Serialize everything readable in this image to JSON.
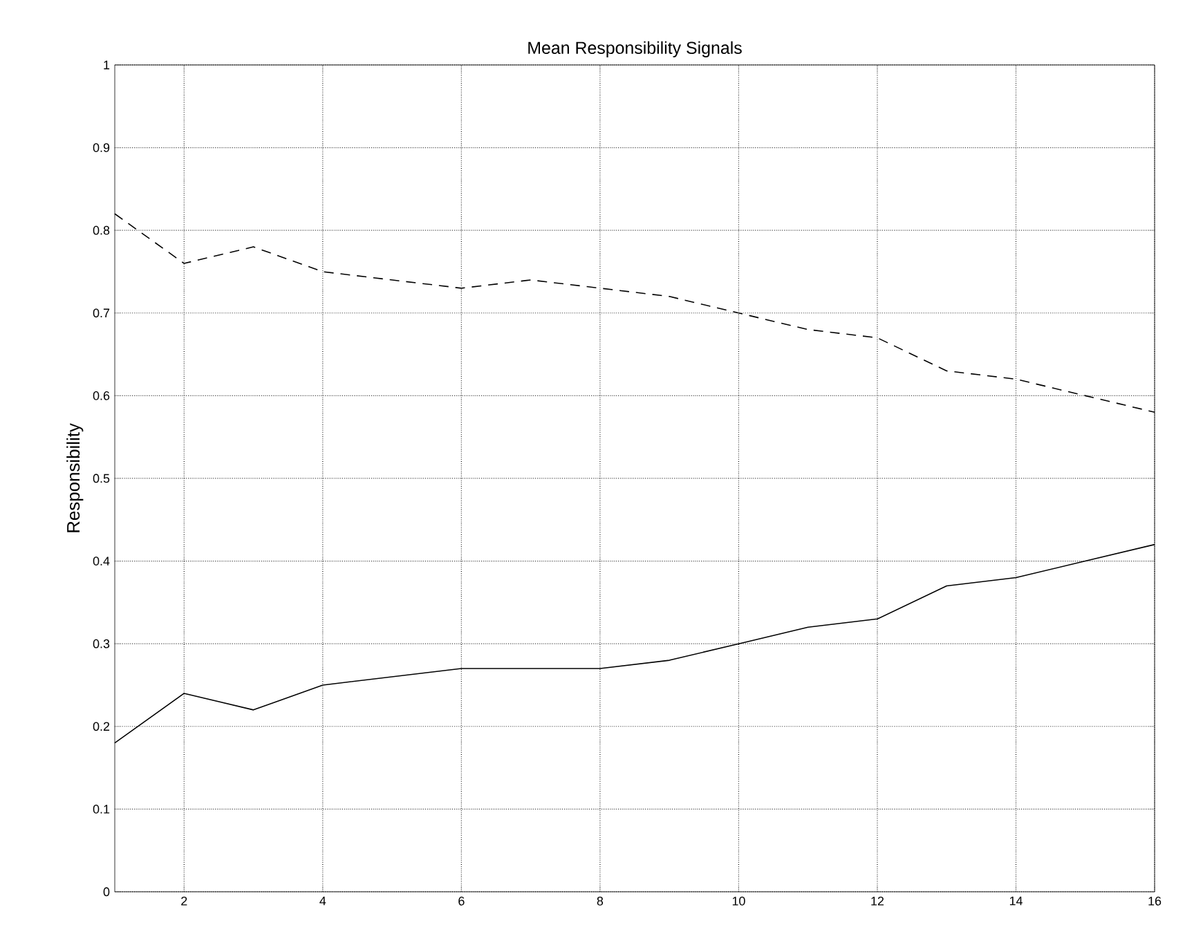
{
  "chart_data": {
    "type": "line",
    "title": "Mean Responsibility Signals",
    "ylabel": "Responsibility",
    "x": [
      1,
      2,
      3,
      4,
      5,
      6,
      7,
      8,
      9,
      10,
      11,
      12,
      13,
      14,
      15,
      16
    ],
    "series": [
      {
        "color": "#000000",
        "line_style": "dashed",
        "values": [
          0.82,
          0.76,
          0.78,
          0.75,
          0.74,
          0.73,
          0.74,
          0.73,
          0.72,
          0.7,
          0.68,
          0.67,
          0.63,
          0.62,
          0.6,
          0.58
        ]
      },
      {
        "color": "#000000",
        "line_style": "solid",
        "values": [
          0.18,
          0.24,
          0.22,
          0.25,
          0.26,
          0.27,
          0.27,
          0.27,
          0.28,
          0.3,
          0.32,
          0.33,
          0.37,
          0.38,
          0.4,
          0.42
        ]
      }
    ],
    "xlim": [
      1,
      16
    ],
    "xticks": [
      2,
      4,
      6,
      8,
      10,
      12,
      14,
      16
    ],
    "ylim": [
      0,
      1
    ],
    "yticks": [
      0,
      0.1,
      0.2,
      0.3,
      0.4,
      0.5,
      0.6,
      0.7,
      0.8,
      0.9,
      1
    ],
    "grid": true,
    "marker": "none"
  }
}
